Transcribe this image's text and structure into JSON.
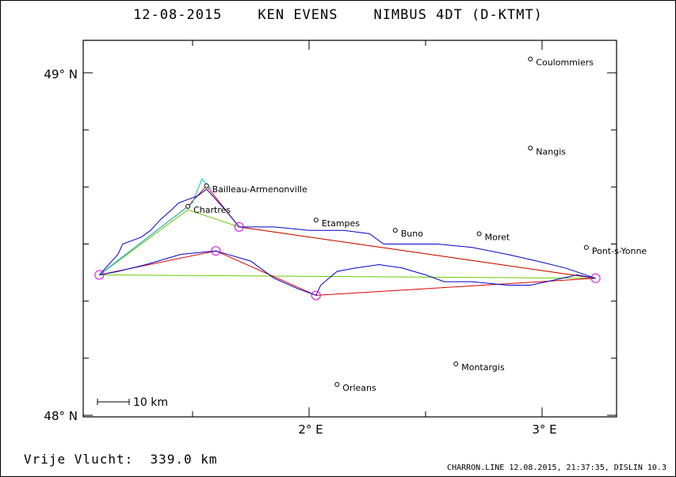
{
  "title": {
    "date": "12-08-2015",
    "pilot": "KEN EVENS",
    "glider": "NIMBUS 4DT (D-KTMT)"
  },
  "axes": {
    "lat_labels": [
      {
        "value": 49,
        "text": "49° N"
      },
      {
        "value": 48,
        "text": "48° N"
      }
    ],
    "lon_labels": [
      {
        "value": 2,
        "text": "2° E"
      },
      {
        "value": 3,
        "text": "3° E"
      }
    ]
  },
  "scale_bar": {
    "label": "10 km",
    "km": 10
  },
  "towns": [
    {
      "name": "Coulommiers",
      "lon": 2.95,
      "lat": 49.04
    },
    {
      "name": "Nangis",
      "lon": 2.95,
      "lat": 48.78
    },
    {
      "name": "Bailleau-Armenonville",
      "lon": 1.56,
      "lat": 48.67
    },
    {
      "name": "Chartres",
      "lon": 1.48,
      "lat": 48.61
    },
    {
      "name": "Etampes",
      "lon": 2.03,
      "lat": 48.57
    },
    {
      "name": "Buno",
      "lon": 2.37,
      "lat": 48.54
    },
    {
      "name": "Moret",
      "lon": 2.73,
      "lat": 48.53
    },
    {
      "name": "Pont-s-Yonne",
      "lon": 3.19,
      "lat": 48.49
    },
    {
      "name": "Montargis",
      "lon": 2.63,
      "lat": 48.15
    },
    {
      "name": "Orleans",
      "lon": 2.12,
      "lat": 48.09
    }
  ],
  "turnpoints": [
    {
      "lon": 1.1,
      "lat": 48.41
    },
    {
      "lon": 1.6,
      "lat": 48.48
    },
    {
      "lon": 2.03,
      "lat": 48.35
    },
    {
      "lon": 3.23,
      "lat": 48.4
    },
    {
      "lon": 1.7,
      "lat": 48.55
    }
  ],
  "task_line_red": [
    {
      "lon": 1.1,
      "lat": 48.41
    },
    {
      "lon": 1.6,
      "lat": 48.48
    },
    {
      "lon": 2.03,
      "lat": 48.35
    },
    {
      "lon": 3.23,
      "lat": 48.4
    },
    {
      "lon": 1.7,
      "lat": 48.55
    },
    {
      "lon": 1.56,
      "lat": 48.67
    },
    {
      "lon": 1.48,
      "lat": 48.61
    },
    {
      "lon": 1.1,
      "lat": 48.41
    }
  ],
  "olc_line_green": [
    {
      "lon": 1.1,
      "lat": 48.41
    },
    {
      "lon": 3.23,
      "lat": 48.4
    },
    {
      "lon": 1.7,
      "lat": 48.55
    },
    {
      "lon": 1.48,
      "lat": 48.6
    },
    {
      "lon": 1.1,
      "lat": 48.41
    }
  ],
  "cyan_line": [
    {
      "lon": 1.1,
      "lat": 48.41
    },
    {
      "lon": 1.5,
      "lat": 48.62
    },
    {
      "lon": 1.54,
      "lat": 48.69
    },
    {
      "lon": 1.58,
      "lat": 48.66
    }
  ],
  "flight_track_blue": [
    {
      "lon": 1.1,
      "lat": 48.41
    },
    {
      "lon": 1.18,
      "lat": 48.47
    },
    {
      "lon": 1.2,
      "lat": 48.5
    },
    {
      "lon": 1.28,
      "lat": 48.52
    },
    {
      "lon": 1.32,
      "lat": 48.54
    },
    {
      "lon": 1.36,
      "lat": 48.57
    },
    {
      "lon": 1.41,
      "lat": 48.6
    },
    {
      "lon": 1.44,
      "lat": 48.62
    },
    {
      "lon": 1.48,
      "lat": 48.63
    },
    {
      "lon": 1.52,
      "lat": 48.64
    },
    {
      "lon": 1.56,
      "lat": 48.66
    },
    {
      "lon": 1.64,
      "lat": 48.6
    },
    {
      "lon": 1.7,
      "lat": 48.55
    },
    {
      "lon": 1.85,
      "lat": 48.55
    },
    {
      "lon": 2.0,
      "lat": 48.54
    },
    {
      "lon": 2.15,
      "lat": 48.54
    },
    {
      "lon": 2.26,
      "lat": 48.53
    },
    {
      "lon": 2.32,
      "lat": 48.5
    },
    {
      "lon": 2.4,
      "lat": 48.5
    },
    {
      "lon": 2.55,
      "lat": 48.5
    },
    {
      "lon": 2.7,
      "lat": 48.49
    },
    {
      "lon": 2.85,
      "lat": 48.47
    },
    {
      "lon": 2.98,
      "lat": 48.45
    },
    {
      "lon": 3.1,
      "lat": 48.43
    },
    {
      "lon": 3.23,
      "lat": 48.4
    },
    {
      "lon": 3.15,
      "lat": 48.41
    },
    {
      "lon": 3.02,
      "lat": 48.39
    },
    {
      "lon": 2.95,
      "lat": 48.38
    },
    {
      "lon": 2.85,
      "lat": 48.38
    },
    {
      "lon": 2.7,
      "lat": 48.39
    },
    {
      "lon": 2.58,
      "lat": 48.39
    },
    {
      "lon": 2.5,
      "lat": 48.41
    },
    {
      "lon": 2.4,
      "lat": 48.43
    },
    {
      "lon": 2.3,
      "lat": 48.44
    },
    {
      "lon": 2.2,
      "lat": 48.43
    },
    {
      "lon": 2.12,
      "lat": 48.42
    },
    {
      "lon": 2.05,
      "lat": 48.38
    },
    {
      "lon": 2.03,
      "lat": 48.35
    },
    {
      "lon": 1.95,
      "lat": 48.37
    },
    {
      "lon": 1.85,
      "lat": 48.4
    },
    {
      "lon": 1.75,
      "lat": 48.45
    },
    {
      "lon": 1.6,
      "lat": 48.48
    },
    {
      "lon": 1.45,
      "lat": 48.47
    },
    {
      "lon": 1.3,
      "lat": 48.44
    },
    {
      "lon": 1.18,
      "lat": 48.42
    },
    {
      "lon": 1.1,
      "lat": 48.41
    }
  ],
  "colors": {
    "track": "#0000cc",
    "task": "#dd0000",
    "olc": "#66cc00",
    "cyan": "#00c0e0",
    "turnpoint": "#e000e0",
    "frame": "#000000"
  },
  "footer": {
    "distance_label": "Vrije Vlucht:",
    "distance_value": "339.0 km",
    "file_info": "CHARRON.LINE 12.08.2015, 21:37:35, DISLIN 10.3"
  }
}
